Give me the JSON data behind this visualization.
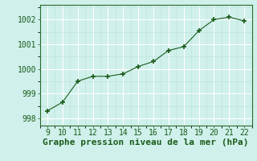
{
  "x": [
    9,
    10,
    11,
    12,
    13,
    14,
    15,
    16,
    17,
    18,
    19,
    20,
    21,
    22
  ],
  "y": [
    998.3,
    998.65,
    999.5,
    999.7,
    999.7,
    999.8,
    1000.1,
    1000.3,
    1000.75,
    1000.9,
    1001.55,
    1002.0,
    1002.1,
    1001.95
  ],
  "xlim": [
    8.5,
    22.5
  ],
  "ylim": [
    997.7,
    1002.6
  ],
  "yticks": [
    998,
    999,
    1000,
    1001,
    1002
  ],
  "xticks": [
    9,
    10,
    11,
    12,
    13,
    14,
    15,
    16,
    17,
    18,
    19,
    20,
    21,
    22
  ],
  "xlabel": "Graphe pression niveau de la mer (hPa)",
  "line_color": "#1a5c1a",
  "marker_color": "#1a5c1a",
  "bg_color": "#cff0eb",
  "grid_major_color": "#ffffff",
  "grid_minor_color": "#b8e0da",
  "border_color": "#2a6a2a",
  "tick_label_color": "#1a5c1a",
  "xlabel_color": "#1a5c1a",
  "font_size": 7.0,
  "xlabel_font_size": 8.0
}
